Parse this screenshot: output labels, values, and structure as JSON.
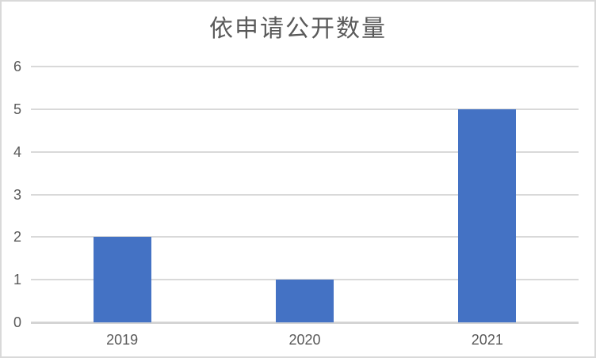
{
  "chart": {
    "title": "依申请公开数量"
  },
  "chart_data": {
    "type": "bar",
    "title": "依申请公开数量",
    "categories": [
      "2019",
      "2020",
      "2021"
    ],
    "values": [
      2,
      1,
      5
    ],
    "series": [
      {
        "name": "依申请公开数量",
        "values": [
          2,
          1,
          5
        ]
      }
    ],
    "xlabel": "",
    "ylabel": "",
    "ylim": [
      0,
      6
    ],
    "yticks": [
      0,
      1,
      2,
      3,
      4,
      5,
      6
    ],
    "grid": true,
    "legend_position": "none",
    "colors": {
      "bar": "#4472C4",
      "gridline": "#D9D9D9",
      "axis_line": "#D4D4D4",
      "axis_text": "#595959",
      "title_text": "#595959",
      "border": "#D9D9D9",
      "background": "#FFFFFF"
    }
  }
}
